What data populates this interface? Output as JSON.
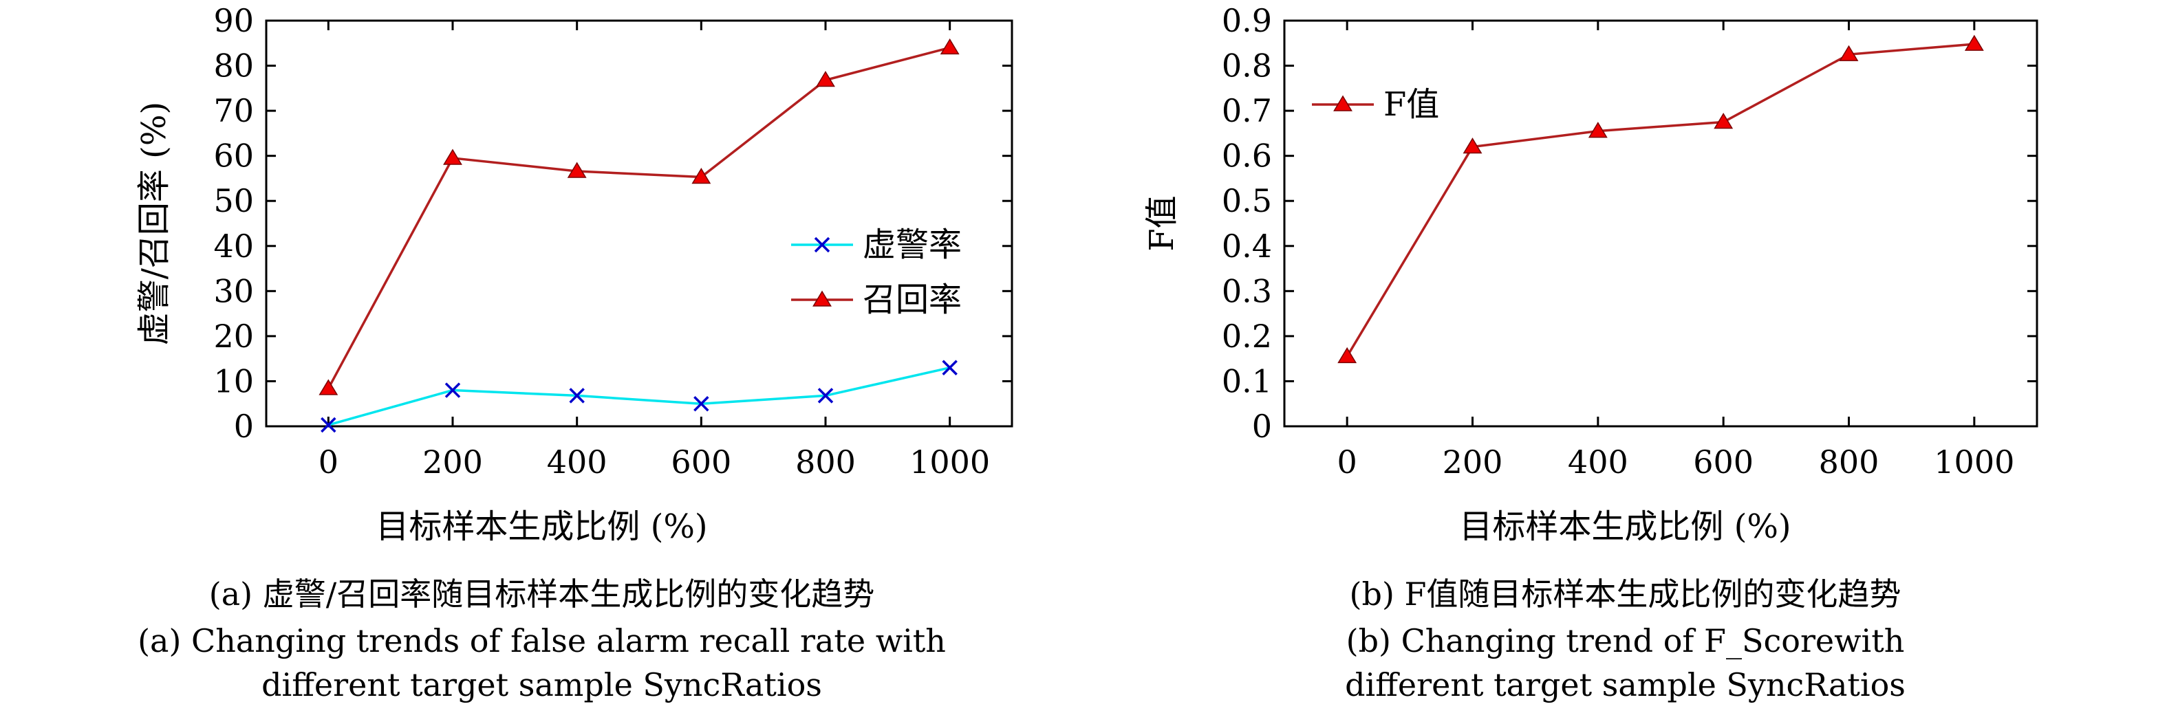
{
  "chart_data": [
    {
      "type": "line",
      "xlabel": "目标样本生成比例 (%)",
      "ylabel": "虚警/召回率 (%)",
      "x": [
        0,
        200,
        400,
        600,
        800,
        1000
      ],
      "ylim": [
        0,
        90
      ],
      "yticks": [
        0,
        10,
        20,
        30,
        40,
        50,
        60,
        70,
        80,
        90
      ],
      "grid": false,
      "legend_position": "center-right",
      "series": [
        {
          "name": "虚警率",
          "color": "#00e5ee",
          "marker": "x",
          "marker_color": "#0000cc",
          "values": [
            0.3,
            8,
            6.8,
            5,
            6.8,
            13
          ]
        },
        {
          "name": "召回率",
          "color": "#b21f1f",
          "marker": "triangle",
          "marker_color": "#ee0000",
          "values": [
            8.4,
            59.5,
            56.6,
            55.3,
            76.8,
            84
          ]
        }
      ],
      "caption_cn": "(a) 虚警/召回率随目标样本生成比例的变化趋势",
      "caption_en_line1": "(a) Changing trends of false alarm recall rate with",
      "caption_en_line2": "different target sample SyncRatios"
    },
    {
      "type": "line",
      "xlabel": "目标样本生成比例 (%)",
      "ylabel": "F值",
      "x": [
        0,
        200,
        400,
        600,
        800,
        1000
      ],
      "ylim": [
        0,
        0.9
      ],
      "yticks": [
        0,
        0.1,
        0.2,
        0.3,
        0.4,
        0.5,
        0.6,
        0.7,
        0.8,
        0.9
      ],
      "grid": false,
      "legend_position": "top-left",
      "series": [
        {
          "name": "F值",
          "color": "#b21f1f",
          "marker": "triangle",
          "marker_color": "#ee0000",
          "values": [
            0.155,
            0.62,
            0.655,
            0.675,
            0.825,
            0.848
          ]
        }
      ],
      "caption_cn": "(b) F值随目标样本生成比例的变化趋势",
      "caption_en_line1": "(b) Changing trend of F_Scorewith",
      "caption_en_line2": "different target sample SyncRatios"
    }
  ]
}
